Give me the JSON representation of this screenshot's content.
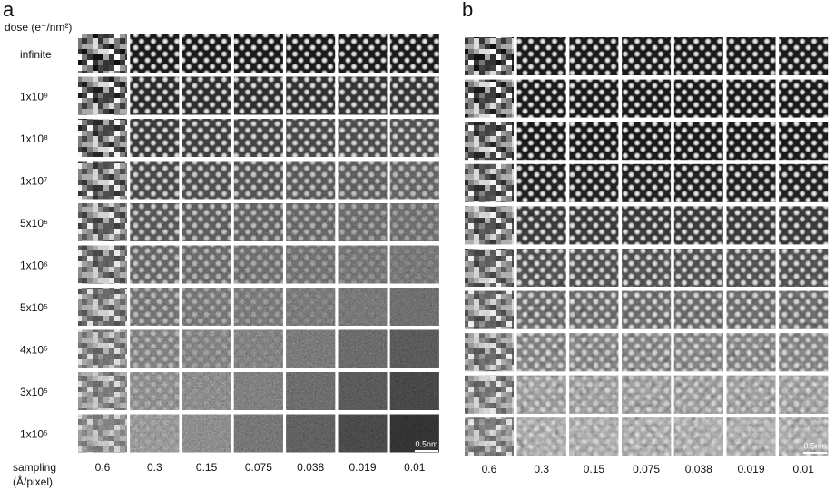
{
  "panels": [
    {
      "label": "a",
      "dose_header": "dose (e⁻/nm²)",
      "row_labels": [
        "infinite",
        "1x10⁹",
        "1x10⁸",
        "1x10⁷",
        "5x10⁶",
        "1x10⁶",
        "5x10⁵",
        "4x10⁵",
        "3x10⁵",
        "1x10⁵"
      ],
      "sampling_header": [
        "sampling",
        "(Å/pixel)"
      ],
      "columns": [
        "0.6",
        "0.3",
        "0.15",
        "0.075",
        "0.038",
        "0.019",
        "0.01"
      ],
      "scale_bar": "0.5nm"
    },
    {
      "label": "b",
      "columns": [
        "0.6",
        "0.3",
        "0.15",
        "0.075",
        "0.038",
        "0.019",
        "0.01"
      ],
      "scale_bar": "0.5nm"
    }
  ]
}
